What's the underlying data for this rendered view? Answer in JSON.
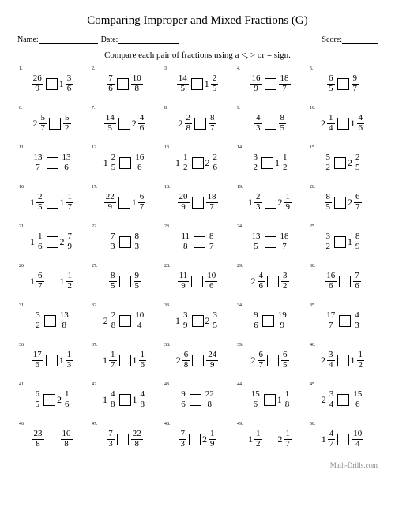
{
  "title": "Comparing Improper and Mixed Fractions (G)",
  "labels": {
    "name": "Name:",
    "date": "Date:",
    "score": "Score:"
  },
  "instruction": "Compare each pair of fractions using a <, > or = sign.",
  "footer": "Math-Drills.com",
  "lineWidths": {
    "name": 75,
    "date": 78,
    "score": 45
  },
  "problems": [
    {
      "n": 1,
      "l": {
        "num": 26,
        "den": 9
      },
      "r": {
        "w": 1,
        "num": 3,
        "den": 6
      }
    },
    {
      "n": 2,
      "l": {
        "num": 7,
        "den": 6
      },
      "r": {
        "num": 10,
        "den": 8
      }
    },
    {
      "n": 3,
      "l": {
        "num": 14,
        "den": 5
      },
      "r": {
        "w": 1,
        "num": 2,
        "den": 5
      }
    },
    {
      "n": 4,
      "l": {
        "num": 16,
        "den": 9
      },
      "r": {
        "num": 18,
        "den": 7
      }
    },
    {
      "n": 5,
      "l": {
        "num": 6,
        "den": 5
      },
      "r": {
        "num": 9,
        "den": 7
      }
    },
    {
      "n": 6,
      "l": {
        "w": 2,
        "num": 5,
        "den": 7
      },
      "r": {
        "num": 5,
        "den": 2
      }
    },
    {
      "n": 7,
      "l": {
        "num": 14,
        "den": 5
      },
      "r": {
        "w": 2,
        "num": 4,
        "den": 6
      }
    },
    {
      "n": 8,
      "l": {
        "w": 2,
        "num": 2,
        "den": 8
      },
      "r": {
        "num": 8,
        "den": 7
      }
    },
    {
      "n": 9,
      "l": {
        "num": 4,
        "den": 3
      },
      "r": {
        "num": 8,
        "den": 5
      }
    },
    {
      "n": 10,
      "l": {
        "w": 2,
        "num": 1,
        "den": 4
      },
      "r": {
        "w": 1,
        "num": 4,
        "den": 6
      }
    },
    {
      "n": 11,
      "l": {
        "num": 13,
        "den": 7
      },
      "r": {
        "num": 13,
        "den": 6
      }
    },
    {
      "n": 12,
      "l": {
        "w": 1,
        "num": 2,
        "den": 5
      },
      "r": {
        "num": 16,
        "den": 6
      }
    },
    {
      "n": 13,
      "l": {
        "w": 1,
        "num": 1,
        "den": 2
      },
      "r": {
        "w": 2,
        "num": 2,
        "den": 6
      }
    },
    {
      "n": 14,
      "l": {
        "num": 3,
        "den": 2
      },
      "r": {
        "w": 1,
        "num": 1,
        "den": 2
      }
    },
    {
      "n": 15,
      "l": {
        "num": 5,
        "den": 2
      },
      "r": {
        "w": 2,
        "num": 2,
        "den": 5
      }
    },
    {
      "n": 16,
      "l": {
        "w": 1,
        "num": 2,
        "den": 5
      },
      "r": {
        "w": 1,
        "num": 1,
        "den": 7
      }
    },
    {
      "n": 17,
      "l": {
        "num": 22,
        "den": 9
      },
      "r": {
        "w": 1,
        "num": 6,
        "den": 7
      }
    },
    {
      "n": 18,
      "l": {
        "num": 20,
        "den": 9
      },
      "r": {
        "num": 18,
        "den": 7
      }
    },
    {
      "n": 19,
      "l": {
        "w": 1,
        "num": 2,
        "den": 3
      },
      "r": {
        "w": 2,
        "num": 1,
        "den": 9
      }
    },
    {
      "n": 20,
      "l": {
        "num": 8,
        "den": 5
      },
      "r": {
        "w": 2,
        "num": 6,
        "den": 7
      }
    },
    {
      "n": 21,
      "l": {
        "w": 1,
        "num": 1,
        "den": 6
      },
      "r": {
        "w": 2,
        "num": 7,
        "den": 9
      }
    },
    {
      "n": 22,
      "l": {
        "num": 7,
        "den": 3
      },
      "r": {
        "num": 8,
        "den": 3
      }
    },
    {
      "n": 23,
      "l": {
        "num": 11,
        "den": 8
      },
      "r": {
        "num": 8,
        "den": 7
      }
    },
    {
      "n": 24,
      "l": {
        "num": 13,
        "den": 5
      },
      "r": {
        "num": 18,
        "den": 7
      }
    },
    {
      "n": 25,
      "l": {
        "num": 3,
        "den": 2
      },
      "r": {
        "w": 1,
        "num": 8,
        "den": 9
      }
    },
    {
      "n": 26,
      "l": {
        "w": 1,
        "num": 6,
        "den": 7
      },
      "r": {
        "w": 1,
        "num": 1,
        "den": 2
      }
    },
    {
      "n": 27,
      "l": {
        "num": 8,
        "den": 5
      },
      "r": {
        "num": 9,
        "den": 5
      }
    },
    {
      "n": 28,
      "l": {
        "num": 11,
        "den": 9
      },
      "r": {
        "num": 10,
        "den": 6
      }
    },
    {
      "n": 29,
      "l": {
        "w": 2,
        "num": 4,
        "den": 6
      },
      "r": {
        "num": 3,
        "den": 2
      }
    },
    {
      "n": 30,
      "l": {
        "num": 16,
        "den": 6
      },
      "r": {
        "num": 7,
        "den": 6
      }
    },
    {
      "n": 31,
      "l": {
        "num": 3,
        "den": 2
      },
      "r": {
        "num": 13,
        "den": 8
      }
    },
    {
      "n": 32,
      "l": {
        "w": 2,
        "num": 2,
        "den": 8
      },
      "r": {
        "num": 10,
        "den": 4
      }
    },
    {
      "n": 33,
      "l": {
        "w": 1,
        "num": 3,
        "den": 9
      },
      "r": {
        "w": 2,
        "num": 3,
        "den": 5
      }
    },
    {
      "n": 34,
      "l": {
        "num": 9,
        "den": 6
      },
      "r": {
        "num": 19,
        "den": 9
      }
    },
    {
      "n": 35,
      "l": {
        "num": 17,
        "den": 7
      },
      "r": {
        "num": 4,
        "den": 3
      }
    },
    {
      "n": 36,
      "l": {
        "num": 17,
        "den": 6
      },
      "r": {
        "w": 1,
        "num": 1,
        "den": 3
      }
    },
    {
      "n": 37,
      "l": {
        "w": 1,
        "num": 1,
        "den": 7
      },
      "r": {
        "w": 1,
        "num": 1,
        "den": 6
      }
    },
    {
      "n": 38,
      "l": {
        "w": 2,
        "num": 6,
        "den": 8
      },
      "r": {
        "num": 24,
        "den": 9
      }
    },
    {
      "n": 39,
      "l": {
        "w": 2,
        "num": 6,
        "den": 7
      },
      "r": {
        "num": 6,
        "den": 5
      }
    },
    {
      "n": 40,
      "l": {
        "w": 2,
        "num": 3,
        "den": 4
      },
      "r": {
        "w": 1,
        "num": 1,
        "den": 2
      }
    },
    {
      "n": 41,
      "l": {
        "num": 6,
        "den": 5
      },
      "r": {
        "w": 2,
        "num": 1,
        "den": 6
      }
    },
    {
      "n": 42,
      "l": {
        "w": 1,
        "num": 4,
        "den": 8
      },
      "r": {
        "w": 1,
        "num": 4,
        "den": 8
      }
    },
    {
      "n": 43,
      "l": {
        "num": 9,
        "den": 6
      },
      "r": {
        "num": 22,
        "den": 8
      }
    },
    {
      "n": 44,
      "l": {
        "num": 15,
        "den": 6
      },
      "r": {
        "w": 1,
        "num": 1,
        "den": 8
      }
    },
    {
      "n": 45,
      "l": {
        "w": 2,
        "num": 3,
        "den": 4
      },
      "r": {
        "num": 15,
        "den": 6
      }
    },
    {
      "n": 46,
      "l": {
        "num": 23,
        "den": 8
      },
      "r": {
        "num": 10,
        "den": 8
      }
    },
    {
      "n": 47,
      "l": {
        "num": 7,
        "den": 3
      },
      "r": {
        "num": 22,
        "den": 8
      }
    },
    {
      "n": 48,
      "l": {
        "num": 7,
        "den": 3
      },
      "r": {
        "w": 2,
        "num": 1,
        "den": 9
      }
    },
    {
      "n": 49,
      "l": {
        "w": 1,
        "num": 1,
        "den": 2
      },
      "r": {
        "w": 2,
        "num": 1,
        "den": 7
      }
    },
    {
      "n": 50,
      "l": {
        "w": 1,
        "num": 4,
        "den": 7
      },
      "r": {
        "num": 10,
        "den": 4
      }
    }
  ]
}
